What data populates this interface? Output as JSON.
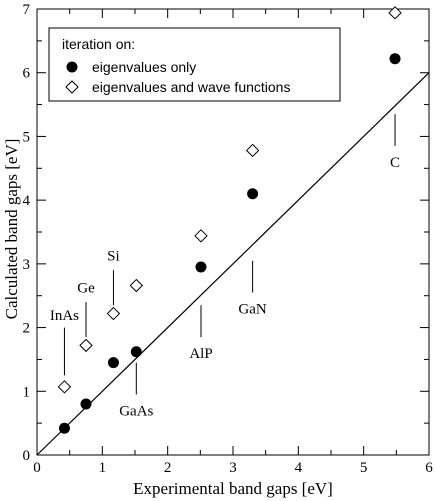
{
  "chart_data": {
    "type": "scatter",
    "title": "",
    "xlabel": "Experimental band gaps   [eV]",
    "ylabel": "Calculated band gaps   [eV]",
    "xlim": [
      0,
      6
    ],
    "ylim": [
      0,
      7
    ],
    "xticks": [
      "0",
      "1",
      "2",
      "3",
      "4",
      "5",
      "6"
    ],
    "yticks": [
      "0",
      "1",
      "2",
      "3",
      "4",
      "5",
      "6",
      "7"
    ],
    "grid": false,
    "legend": {
      "placement": "top-left",
      "title": "iteration on:",
      "entries": [
        "eigenvalues only",
        "eigenvalues and wave functions"
      ]
    },
    "series": [
      {
        "name": "eigenvalues only",
        "marker": "filled-circle",
        "x": [
          0.42,
          0.75,
          1.17,
          1.52,
          2.51,
          3.3,
          5.48
        ],
        "y": [
          0.42,
          0.8,
          1.45,
          1.62,
          2.95,
          4.1,
          6.22
        ]
      },
      {
        "name": "eigenvalues and wave functions",
        "marker": "open-diamond",
        "x": [
          0.42,
          0.75,
          1.17,
          1.52,
          2.51,
          3.3,
          5.48
        ],
        "y": [
          1.07,
          1.72,
          2.22,
          2.66,
          3.44,
          4.78,
          6.94
        ]
      }
    ],
    "reference_line": {
      "x": [
        0,
        6
      ],
      "y": [
        0,
        6
      ]
    },
    "annotations": [
      {
        "text": "InAs",
        "x": 0.42
      },
      {
        "text": "Ge",
        "x": 0.75
      },
      {
        "text": "Si",
        "x": 1.17
      },
      {
        "text": "GaAs",
        "x": 1.52
      },
      {
        "text": "AlP",
        "x": 2.51
      },
      {
        "text": "GaN",
        "x": 3.3
      },
      {
        "text": "C",
        "x": 5.48
      }
    ]
  }
}
